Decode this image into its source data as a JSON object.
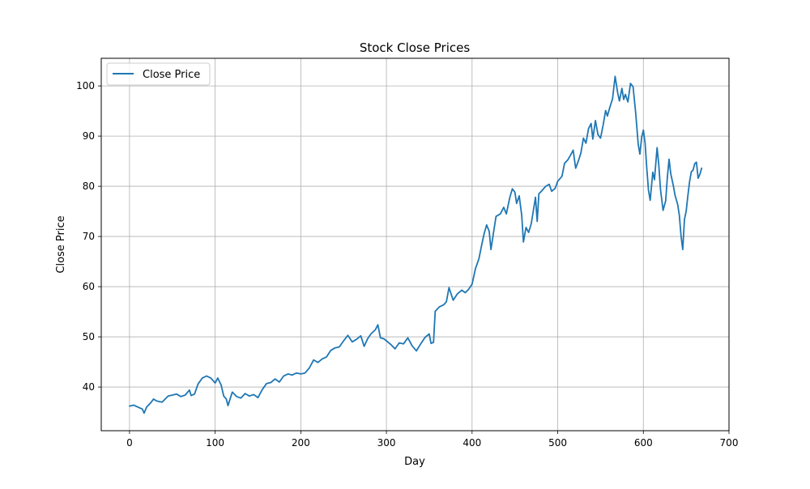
{
  "chart_data": {
    "type": "line",
    "title": "Stock Close Prices",
    "xlabel": "Day",
    "ylabel": "Close Price",
    "xlim": [
      -33,
      700
    ],
    "ylim": [
      31.3,
      105.5
    ],
    "x_ticks": [
      0,
      100,
      200,
      300,
      400,
      500,
      600,
      700
    ],
    "y_ticks": [
      40,
      50,
      60,
      70,
      80,
      90,
      100
    ],
    "grid": true,
    "legend_position": "top-left",
    "series": [
      {
        "name": "Close Price",
        "color": "#1f77b4",
        "points": [
          [
            0,
            36.2
          ],
          [
            5,
            36.4
          ],
          [
            10,
            36.0
          ],
          [
            15,
            35.6
          ],
          [
            17,
            34.8
          ],
          [
            20,
            36.0
          ],
          [
            25,
            36.9
          ],
          [
            28,
            37.6
          ],
          [
            32,
            37.2
          ],
          [
            38,
            37.0
          ],
          [
            45,
            38.2
          ],
          [
            50,
            38.4
          ],
          [
            55,
            38.6
          ],
          [
            60,
            38.1
          ],
          [
            65,
            38.4
          ],
          [
            70,
            39.4
          ],
          [
            72,
            38.3
          ],
          [
            76,
            38.6
          ],
          [
            80,
            40.6
          ],
          [
            85,
            41.8
          ],
          [
            90,
            42.2
          ],
          [
            95,
            41.8
          ],
          [
            100,
            40.8
          ],
          [
            103,
            41.8
          ],
          [
            107,
            40.4
          ],
          [
            110,
            38.2
          ],
          [
            113,
            37.6
          ],
          [
            115,
            36.3
          ],
          [
            117,
            37.4
          ],
          [
            120,
            39.0
          ],
          [
            125,
            38.1
          ],
          [
            130,
            37.8
          ],
          [
            135,
            38.7
          ],
          [
            140,
            38.2
          ],
          [
            145,
            38.5
          ],
          [
            150,
            37.9
          ],
          [
            155,
            39.5
          ],
          [
            160,
            40.7
          ],
          [
            165,
            40.9
          ],
          [
            170,
            41.6
          ],
          [
            175,
            41.0
          ],
          [
            180,
            42.2
          ],
          [
            185,
            42.6
          ],
          [
            190,
            42.4
          ],
          [
            195,
            42.8
          ],
          [
            200,
            42.6
          ],
          [
            205,
            42.8
          ],
          [
            210,
            43.8
          ],
          [
            215,
            45.4
          ],
          [
            220,
            44.9
          ],
          [
            225,
            45.6
          ],
          [
            230,
            46.0
          ],
          [
            235,
            47.3
          ],
          [
            240,
            47.8
          ],
          [
            245,
            48.0
          ],
          [
            250,
            49.2
          ],
          [
            255,
            50.3
          ],
          [
            260,
            49.0
          ],
          [
            265,
            49.5
          ],
          [
            270,
            50.2
          ],
          [
            274,
            48.1
          ],
          [
            278,
            49.6
          ],
          [
            282,
            50.6
          ],
          [
            287,
            51.4
          ],
          [
            290,
            52.4
          ],
          [
            293,
            49.8
          ],
          [
            297,
            49.6
          ],
          [
            300,
            49.2
          ],
          [
            305,
            48.5
          ],
          [
            310,
            47.6
          ],
          [
            315,
            48.8
          ],
          [
            320,
            48.6
          ],
          [
            325,
            49.8
          ],
          [
            330,
            48.2
          ],
          [
            335,
            47.2
          ],
          [
            340,
            48.6
          ],
          [
            345,
            49.9
          ],
          [
            350,
            50.6
          ],
          [
            352,
            48.7
          ],
          [
            355,
            48.9
          ],
          [
            357,
            55.1
          ],
          [
            362,
            56.0
          ],
          [
            367,
            56.4
          ],
          [
            370,
            57.0
          ],
          [
            373,
            59.8
          ],
          [
            378,
            57.3
          ],
          [
            383,
            58.6
          ],
          [
            388,
            59.3
          ],
          [
            392,
            58.8
          ],
          [
            396,
            59.5
          ],
          [
            400,
            60.5
          ],
          [
            404,
            63.6
          ],
          [
            408,
            65.6
          ],
          [
            411,
            68.1
          ],
          [
            414,
            70.5
          ],
          [
            417,
            72.3
          ],
          [
            420,
            71.0
          ],
          [
            422,
            67.4
          ],
          [
            425,
            70.7
          ],
          [
            428,
            74.0
          ],
          [
            433,
            74.5
          ],
          [
            437,
            75.8
          ],
          [
            440,
            74.5
          ],
          [
            444,
            77.7
          ],
          [
            447,
            79.5
          ],
          [
            450,
            78.8
          ],
          [
            452,
            76.6
          ],
          [
            455,
            78.1
          ],
          [
            458,
            74.2
          ],
          [
            460,
            68.9
          ],
          [
            463,
            71.8
          ],
          [
            466,
            70.8
          ],
          [
            469,
            72.5
          ],
          [
            472,
            75.6
          ],
          [
            474,
            77.8
          ],
          [
            476,
            73.0
          ],
          [
            478,
            78.5
          ],
          [
            482,
            79.2
          ],
          [
            486,
            80.0
          ],
          [
            490,
            80.4
          ],
          [
            493,
            79.0
          ],
          [
            497,
            79.6
          ],
          [
            500,
            81.0
          ],
          [
            505,
            82.0
          ],
          [
            508,
            84.6
          ],
          [
            512,
            85.3
          ],
          [
            515,
            86.2
          ],
          [
            518,
            87.2
          ],
          [
            521,
            83.6
          ],
          [
            524,
            85.0
          ],
          [
            527,
            86.6
          ],
          [
            530,
            89.6
          ],
          [
            533,
            88.6
          ],
          [
            536,
            91.5
          ],
          [
            539,
            92.5
          ],
          [
            541,
            89.4
          ],
          [
            544,
            93.1
          ],
          [
            547,
            90.3
          ],
          [
            550,
            89.6
          ],
          [
            553,
            92.2
          ],
          [
            556,
            95.1
          ],
          [
            558,
            94.0
          ],
          [
            561,
            95.8
          ],
          [
            564,
            97.4
          ],
          [
            567,
            101.9
          ],
          [
            570,
            98.6
          ],
          [
            572,
            97.0
          ],
          [
            575,
            99.5
          ],
          [
            577,
            97.3
          ],
          [
            579,
            98.3
          ],
          [
            582,
            96.8
          ],
          [
            585,
            100.5
          ],
          [
            588,
            99.8
          ],
          [
            591,
            94.6
          ],
          [
            594,
            88.4
          ],
          [
            596,
            86.4
          ],
          [
            598,
            89.8
          ],
          [
            600,
            91.2
          ],
          [
            602,
            88.6
          ],
          [
            604,
            83.6
          ],
          [
            606,
            79.2
          ],
          [
            608,
            77.2
          ],
          [
            611,
            82.8
          ],
          [
            613,
            81.3
          ],
          [
            616,
            87.7
          ],
          [
            618,
            84.3
          ],
          [
            620,
            79.4
          ],
          [
            623,
            75.2
          ],
          [
            626,
            77.1
          ],
          [
            628,
            81.8
          ],
          [
            630,
            85.4
          ],
          [
            632,
            82.5
          ],
          [
            635,
            80.1
          ],
          [
            637,
            78.2
          ],
          [
            640,
            76.4
          ],
          [
            642,
            74.2
          ],
          [
            644,
            70.1
          ],
          [
            646,
            67.4
          ],
          [
            648,
            73.4
          ],
          [
            650,
            75.0
          ],
          [
            652,
            78.1
          ],
          [
            654,
            81.0
          ],
          [
            656,
            82.9
          ],
          [
            658,
            83.2
          ],
          [
            660,
            84.5
          ],
          [
            662,
            84.8
          ],
          [
            664,
            81.6
          ],
          [
            666,
            82.4
          ],
          [
            668,
            83.6
          ]
        ]
      }
    ]
  }
}
